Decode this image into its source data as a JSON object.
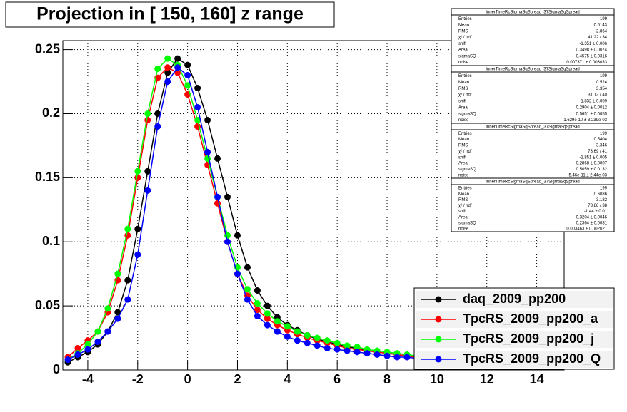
{
  "chart_data": {
    "type": "scatter",
    "title": "Projection in [ 150, 160] z range",
    "x": [
      -4.8,
      -4.4,
      -4,
      -3.6,
      -3.2,
      -2.8,
      -2.4,
      -2,
      -1.6,
      -1.2,
      -0.8,
      -0.4,
      0,
      0.4,
      0.8,
      1.2,
      1.6,
      2,
      2.4,
      2.8,
      3.2,
      3.6,
      4,
      4.4,
      4.8,
      5.2,
      5.6,
      6,
      6.4,
      6.8,
      7.2,
      7.6,
      8,
      8.4,
      8.8,
      9.2
    ],
    "series": [
      {
        "name": "daq_2009_pp200",
        "color": "#000000",
        "values": [
          0.006,
          0.01,
          0.014,
          0.02,
          0.03,
          0.045,
          0.07,
          0.11,
          0.155,
          0.2,
          0.232,
          0.243,
          0.238,
          0.22,
          0.195,
          0.165,
          0.135,
          0.105,
          0.08,
          0.062,
          0.05,
          0.041,
          0.035,
          0.031,
          0.027,
          0.024,
          0.022,
          0.02,
          0.018,
          0.017,
          0.015,
          0.014,
          0.013,
          0.012,
          0.011,
          0.01
        ]
      },
      {
        "name": "TpcRS_2009_pp200_a",
        "color": "#ff0000",
        "values": [
          0.01,
          0.017,
          0.023,
          0.03,
          0.045,
          0.07,
          0.105,
          0.15,
          0.195,
          0.228,
          0.236,
          0.232,
          0.215,
          0.19,
          0.16,
          0.13,
          0.1,
          0.075,
          0.058,
          0.047,
          0.04,
          0.035,
          0.031,
          0.028,
          0.025,
          0.023,
          0.021,
          0.019,
          0.017,
          0.016,
          0.015,
          0.014,
          0.013,
          0.012,
          0.011,
          0.01
        ]
      },
      {
        "name": "TpcRS_2009_pp200_j",
        "color": "#00ff00",
        "values": [
          0.008,
          0.013,
          0.02,
          0.03,
          0.048,
          0.075,
          0.11,
          0.155,
          0.2,
          0.235,
          0.243,
          0.238,
          0.222,
          0.195,
          0.165,
          0.135,
          0.105,
          0.08,
          0.063,
          0.052,
          0.044,
          0.038,
          0.034,
          0.03,
          0.027,
          0.025,
          0.023,
          0.021,
          0.019,
          0.018,
          0.016,
          0.015,
          0.014,
          0.013,
          0.012,
          0.011
        ]
      },
      {
        "name": "TpcRS_2009_pp200_Q",
        "color": "#0000ff",
        "values": [
          0.008,
          0.012,
          0.016,
          0.022,
          0.03,
          0.04,
          0.055,
          0.09,
          0.14,
          0.19,
          0.225,
          0.236,
          0.23,
          0.205,
          0.17,
          0.135,
          0.1,
          0.075,
          0.055,
          0.042,
          0.035,
          0.03,
          0.026,
          0.023,
          0.021,
          0.019,
          0.017,
          0.016,
          0.015,
          0.014,
          0.013,
          0.012,
          0.011,
          0.01,
          0.01,
          0.009
        ]
      }
    ],
    "xlim": [
      -5,
      15.1
    ],
    "xticks": [
      -4,
      -2,
      0,
      2,
      4,
      6,
      8,
      10,
      12,
      14
    ],
    "ylim": [
      0,
      0.257
    ],
    "yticks": [
      0,
      0.05,
      0.1,
      0.15,
      0.2,
      0.25
    ],
    "grid": true,
    "stats": [
      {
        "title": "InnerTimeRcSigmaSqSpread_37SigmaSqSpread",
        "rows": [
          [
            "Entries",
            "199"
          ],
          [
            "Mean",
            "0.6143"
          ],
          [
            "RMS",
            "2.864"
          ],
          [
            "χ² / ndf",
            "41.22 / 34"
          ],
          [
            "shift",
            "-1.351 ± 0.006"
          ],
          [
            "Area",
            "0.3498 ± 0.0074"
          ],
          [
            "sigmaSQ",
            "0.4575 ± 0.0316"
          ],
          [
            "noise",
            "0.007371 ± 0.003033"
          ]
        ]
      },
      {
        "title": "InnerTimeRcSigmaSqSpread_37SigmaSqSpread",
        "rows": [
          [
            "Entries",
            "199"
          ],
          [
            "Mean",
            "0.524"
          ],
          [
            "RMS",
            "3.354"
          ],
          [
            "χ² / ndf",
            "31.12 / 40"
          ],
          [
            "shift",
            "-1.832 ± 0.009"
          ],
          [
            "Area",
            "0.2904 ± 0.0012"
          ],
          [
            "sigmaSQ",
            "0.5651 ± 0.0055"
          ],
          [
            "noise",
            "1.629e-10 ± 3.239e-03"
          ]
        ]
      },
      {
        "title": "InnerTimeRcSigmaSqSpread_37SigmaSqSpread",
        "rows": [
          [
            "Entries",
            "199"
          ],
          [
            "Mean",
            "0.5404"
          ],
          [
            "RMS",
            "3.346"
          ],
          [
            "χ² / ndf",
            "73.69 / 41"
          ],
          [
            "shift",
            "-1.851 ± 0.005"
          ],
          [
            "Area",
            "0.2868 ± 0.0007"
          ],
          [
            "sigmaSQ",
            "0.5059 ± 0.0132"
          ],
          [
            "noise",
            "5.46e-11 ± 2.44e-03"
          ]
        ]
      },
      {
        "title": "InnerTimeRcSigmaSqSpread_37SigmaSqSpread",
        "rows": [
          [
            "Entries",
            "199"
          ],
          [
            "Mean",
            "0.6086"
          ],
          [
            "RMS",
            "3.182"
          ],
          [
            "χ² / ndf",
            "73.88 / 38"
          ],
          [
            "shift",
            "-1.44 ± 0.01"
          ],
          [
            "Area",
            "0.3204 ± 0.0046"
          ],
          [
            "sigmaSQ",
            "0.2364 ± 0.0031"
          ],
          [
            "noise",
            "0.003463 ± 0.002021"
          ]
        ]
      }
    ]
  }
}
